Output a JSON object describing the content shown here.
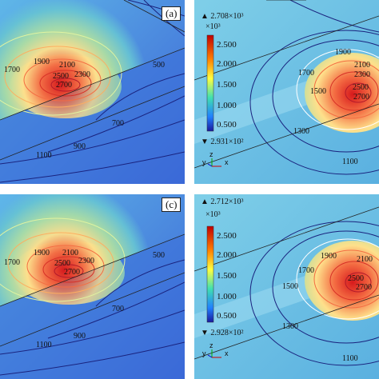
{
  "panels": [
    {
      "id": "a",
      "tag": "(a)",
      "colorbar": null,
      "contour_labels": [
        "1900",
        "1700",
        "2100",
        "2500",
        "2300",
        "2700",
        "500",
        "700",
        "900",
        "1100"
      ]
    },
    {
      "id": "b",
      "tag": null,
      "colorbar": {
        "max": "2.708×10³",
        "unit": "×10³",
        "ticks": [
          "2.500",
          "2.000",
          "1.500",
          "1.000",
          "0.500"
        ],
        "min": "2.931×10²"
      },
      "contour_labels": [
        "1900",
        "1700",
        "2100",
        "2300",
        "1500",
        "2500",
        "2700",
        "1300",
        "1100"
      ]
    },
    {
      "id": "c",
      "tag": "(c)",
      "colorbar": null,
      "contour_labels": [
        "1900",
        "1700",
        "2100",
        "2500",
        "2300",
        "2700",
        "500",
        "700",
        "900",
        "1100"
      ]
    },
    {
      "id": "d",
      "tag": null,
      "colorbar": {
        "max": "2.712×10³",
        "unit": "×10³",
        "ticks": [
          "2.500",
          "2.000",
          "1.500",
          "1.000",
          "0.500"
        ],
        "min": "2.928×10²"
      },
      "contour_labels": [
        "1900",
        "1700",
        "2100",
        "1500",
        "2500",
        "2700",
        "1300",
        "1100"
      ]
    }
  ],
  "axes_labels": {
    "z": "z",
    "y": "y",
    "x": "x"
  },
  "colors": {
    "hot": "#d7191c",
    "warm": "#fdae61",
    "mid": "#ffff8c",
    "cool": "#7fd4c6",
    "cold": "#2c5fc9",
    "deep": "#1a237e"
  }
}
